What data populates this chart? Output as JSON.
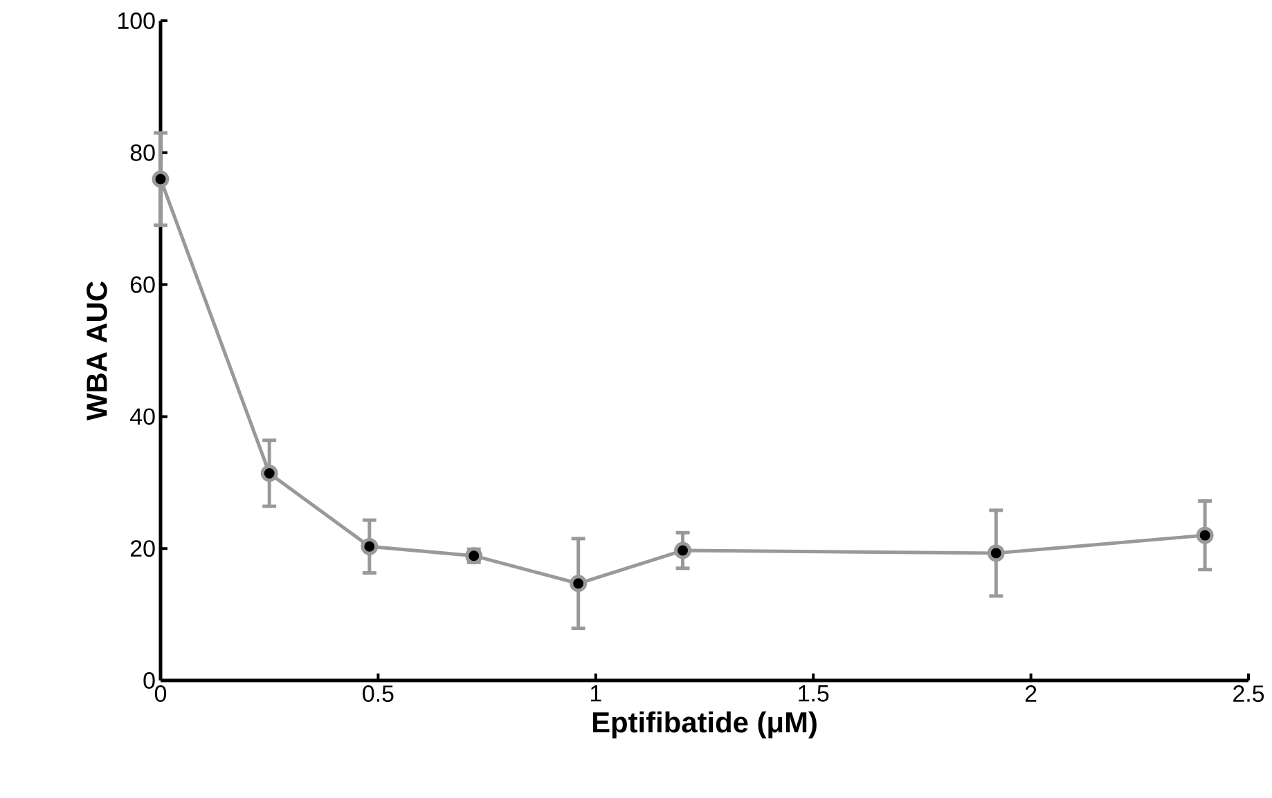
{
  "chart_data": {
    "type": "line",
    "xlabel": "Eptifibatide (μM)",
    "ylabel": "WBA AUC",
    "x": [
      0,
      0.25,
      0.48,
      0.72,
      0.96,
      1.2,
      1.92,
      2.4
    ],
    "series": [
      {
        "color": "#999999",
        "values": [
          76,
          31.4,
          20.3,
          18.9,
          14.7,
          19.7,
          19.3,
          22
        ],
        "errors": [
          7,
          5,
          4,
          1,
          6.8,
          2.7,
          6.5,
          5.2
        ]
      }
    ],
    "xlim": [
      0,
      2.5
    ],
    "ylim": [
      0,
      100
    ],
    "xticks": [
      0,
      0.5,
      1,
      1.5,
      2,
      2.5
    ],
    "yticks": [
      0,
      20,
      40,
      60,
      80,
      100
    ],
    "marker": "circle",
    "line_style": "solid"
  }
}
